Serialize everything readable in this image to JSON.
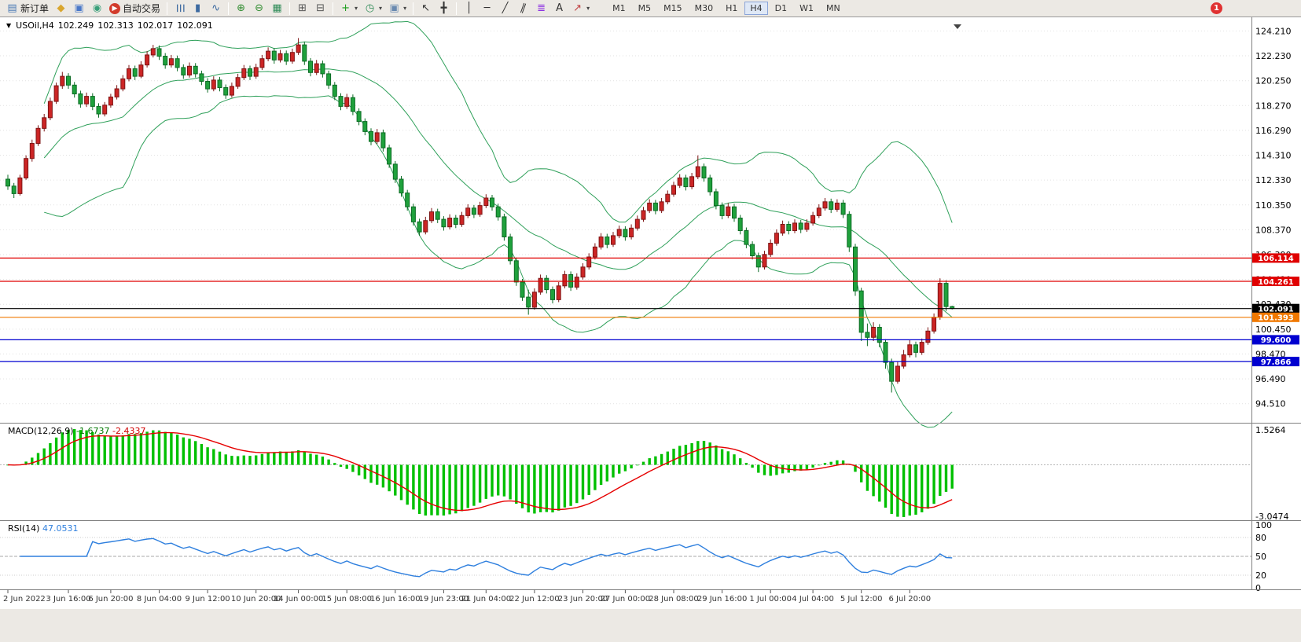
{
  "toolbar": {
    "caret_glyph": "▾",
    "notification_badge": "1",
    "timeframes": [
      "M1",
      "M5",
      "M15",
      "M30",
      "H1",
      "H4",
      "D1",
      "W1",
      "MN"
    ],
    "active_timeframe": "H4",
    "items": [
      {
        "t": "btn",
        "name": "new-order-button",
        "glyph": "▤",
        "gc": "#4a7ab5",
        "label": "新订单"
      },
      {
        "t": "btn",
        "name": "market-watch-button",
        "glyph": "◆",
        "gc": "#D9A62E"
      },
      {
        "t": "btn",
        "name": "charts-window-button",
        "glyph": "▣",
        "gc": "#4a78c8"
      },
      {
        "t": "btn",
        "name": "navigator-button",
        "glyph": "◉",
        "gc": "#3aa07a"
      },
      {
        "t": "btn",
        "name": "autotrading-button",
        "glyph": "▶",
        "gc": "#ffffff",
        "gbg": "#d23b2b",
        "label": "自动交易"
      },
      {
        "t": "sep"
      },
      {
        "t": "btn",
        "name": "bar-chart-mode-button",
        "glyph": "☰",
        "gc": "#3c6aa0",
        "rot": 90
      },
      {
        "t": "btn",
        "name": "candlestick-mode-button",
        "glyph": "▮",
        "gc": "#3c6aa0"
      },
      {
        "t": "btn",
        "name": "line-chart-mode-button",
        "glyph": "∿",
        "gc": "#3c6aa0"
      },
      {
        "t": "sep"
      },
      {
        "t": "btn",
        "name": "zoom-in-button",
        "glyph": "⊕",
        "gc": "#2e8b2e"
      },
      {
        "t": "btn",
        "name": "zoom-out-button",
        "glyph": "⊖",
        "gc": "#2e8b2e"
      },
      {
        "t": "btn",
        "name": "grid-button",
        "glyph": "▦",
        "gc": "#2e8b57"
      },
      {
        "t": "sep"
      },
      {
        "t": "btn",
        "name": "tile-windows-button",
        "glyph": "⊞",
        "gc": "#555555"
      },
      {
        "t": "btn",
        "name": "cascade-windows-button",
        "glyph": "⊟",
        "gc": "#555555"
      },
      {
        "t": "sep"
      },
      {
        "t": "btn",
        "name": "add-indicator-button",
        "glyph": "+",
        "gc": "#1d9e1d",
        "caret": true
      },
      {
        "t": "btn",
        "name": "period-button",
        "glyph": "◷",
        "gc": "#2e8b57",
        "caret": true
      },
      {
        "t": "btn",
        "name": "template-button",
        "glyph": "▣",
        "gc": "#6a8ab0",
        "caret": true
      },
      {
        "t": "sep"
      },
      {
        "t": "btn",
        "name": "cursor-button",
        "glyph": "↖",
        "gc": "#333333"
      },
      {
        "t": "btn",
        "name": "crosshair-button",
        "glyph": "╋",
        "gc": "#333333"
      },
      {
        "t": "sep"
      },
      {
        "t": "btn",
        "name": "vertical-line-button",
        "glyph": "│",
        "gc": "#333333"
      },
      {
        "t": "btn",
        "name": "horizontal-line-button",
        "glyph": "─",
        "gc": "#333333"
      },
      {
        "t": "btn",
        "name": "trendline-button",
        "glyph": "╱",
        "gc": "#333333"
      },
      {
        "t": "btn",
        "name": "channel-button",
        "glyph": "∥",
        "gc": "#333333",
        "rot": 20
      },
      {
        "t": "btn",
        "name": "fibonacci-button",
        "glyph": "≣",
        "gc": "#8a2be2"
      },
      {
        "t": "btn",
        "name": "text-label-button",
        "glyph": "A",
        "gc": "#333333"
      },
      {
        "t": "btn",
        "name": "arrows-button",
        "glyph": "↗",
        "gc": "#c04040",
        "caret": true
      }
    ]
  },
  "chart": {
    "menu_arrow_glyph": "▼"
  },
  "chart_data": {
    "type": "candlestick",
    "title": "USOil,H4",
    "timeframe": "H4",
    "ohlc_current": {
      "open": "102.249",
      "high": "102.313",
      "low": "102.017",
      "close": "102.091"
    },
    "colors": {
      "bull": "#CC2525",
      "bull_border": "#7E1515",
      "bear": "#1FA13C",
      "bear_border": "#0C6B24",
      "bollinger": "#2FA05A",
      "macd_histogram": "#00C000",
      "macd_signal": "#E60000",
      "rsi_line": "#2E7FDE"
    },
    "price_axis": {
      "ylim": [
        93.0,
        124.8
      ],
      "ticks": [
        "124.210",
        "122.230",
        "120.250",
        "118.270",
        "116.290",
        "114.310",
        "112.330",
        "110.350",
        "108.370",
        "106.390",
        "104.410",
        "102.430",
        "100.450",
        "98.470",
        "96.490",
        "94.510"
      ]
    },
    "hlines": [
      {
        "price": 106.114,
        "label": "106.114",
        "color": "#E00000"
      },
      {
        "price": 104.261,
        "label": "104.261",
        "color": "#E00000"
      },
      {
        "price": 102.091,
        "label": "102.091",
        "color": "#000000"
      },
      {
        "price": 101.393,
        "label": "101.393",
        "color": "#F07800"
      },
      {
        "price": 99.6,
        "label": "99.600",
        "color": "#0000D0"
      },
      {
        "price": 97.866,
        "label": "97.866",
        "color": "#0000D0"
      }
    ],
    "overlays": {
      "bollinger": {
        "period": 20,
        "deviation": 2
      }
    },
    "indicators": [
      {
        "type": "macd",
        "label": "MACD(12,26,9)",
        "params": [
          12,
          26,
          9
        ],
        "value_main": "-1.6737",
        "value_signal": "-2.4337",
        "axis_labels": [
          "1.5264",
          "-3.0474"
        ]
      },
      {
        "type": "rsi",
        "label": "RSI(14)",
        "value": "47.0531",
        "levels": [
          100,
          80,
          50,
          20,
          0
        ]
      }
    ],
    "time_axis": {
      "labels": [
        {
          "text": "2 Jun 2022",
          "bar": 0
        },
        {
          "text": "3 Jun 16:00",
          "bar": 10
        },
        {
          "text": "6 Jun 20:00",
          "bar": 17
        },
        {
          "text": "8 Jun 04:00",
          "bar": 25
        },
        {
          "text": "9 Jun 12:00",
          "bar": 33
        },
        {
          "text": "10 Jun 20:00",
          "bar": 41
        },
        {
          "text": "14 Jun 00:00",
          "bar": 48
        },
        {
          "text": "15 Jun 08:00",
          "bar": 56
        },
        {
          "text": "16 Jun 16:00",
          "bar": 64
        },
        {
          "text": "19 Jun 23:00",
          "bar": 72
        },
        {
          "text": "21 Jun 04:00",
          "bar": 79
        },
        {
          "text": "22 Jun 12:00",
          "bar": 87
        },
        {
          "text": "23 Jun 20:00",
          "bar": 95
        },
        {
          "text": "27 Jun 00:00",
          "bar": 102
        },
        {
          "text": "28 Jun 08:00",
          "bar": 110
        },
        {
          "text": "29 Jun 16:00",
          "bar": 118
        },
        {
          "text": "1 Jul 00:00",
          "bar": 126
        },
        {
          "text": "4 Jul 04:00",
          "bar": 133
        },
        {
          "text": "5 Jul 12:00",
          "bar": 141
        },
        {
          "text": "6 Jul 20:00",
          "bar": 149
        }
      ]
    },
    "candles": [
      [
        112.4,
        112.75,
        111.55,
        111.85
      ],
      [
        111.85,
        112.1,
        110.9,
        111.25
      ],
      [
        111.25,
        112.75,
        111.1,
        112.5
      ],
      [
        112.5,
        114.3,
        112.35,
        114.05
      ],
      [
        114.05,
        115.55,
        113.8,
        115.25
      ],
      [
        115.25,
        116.7,
        115.05,
        116.45
      ],
      [
        116.45,
        117.6,
        116.2,
        117.3
      ],
      [
        117.3,
        118.9,
        117.1,
        118.6
      ],
      [
        118.6,
        120.1,
        118.4,
        119.85
      ],
      [
        119.85,
        120.95,
        119.6,
        120.6
      ],
      [
        120.6,
        120.85,
        119.6,
        119.9
      ],
      [
        119.9,
        120.15,
        118.9,
        119.2
      ],
      [
        119.2,
        119.45,
        118.1,
        118.4
      ],
      [
        118.4,
        119.3,
        118.15,
        119.0
      ],
      [
        119.0,
        119.25,
        117.9,
        118.2
      ],
      [
        118.2,
        118.45,
        117.3,
        117.6
      ],
      [
        117.6,
        118.55,
        117.4,
        118.3
      ],
      [
        118.3,
        119.2,
        118.1,
        118.95
      ],
      [
        118.95,
        119.9,
        118.75,
        119.6
      ],
      [
        119.6,
        120.7,
        119.4,
        120.4
      ],
      [
        120.4,
        121.5,
        120.2,
        121.2
      ],
      [
        121.2,
        121.45,
        120.3,
        120.6
      ],
      [
        120.6,
        121.8,
        120.45,
        121.5
      ],
      [
        121.5,
        122.6,
        121.3,
        122.3
      ],
      [
        122.3,
        123.1,
        122.1,
        122.8
      ],
      [
        122.8,
        123.05,
        121.9,
        122.2
      ],
      [
        122.2,
        122.45,
        121.2,
        121.5
      ],
      [
        121.5,
        122.3,
        121.3,
        122.0
      ],
      [
        122.0,
        122.25,
        121.0,
        121.3
      ],
      [
        121.3,
        121.55,
        120.4,
        120.7
      ],
      [
        120.7,
        121.7,
        120.5,
        121.4
      ],
      [
        121.4,
        121.65,
        120.5,
        120.8
      ],
      [
        120.8,
        121.05,
        119.9,
        120.2
      ],
      [
        120.2,
        120.45,
        119.3,
        119.6
      ],
      [
        119.6,
        120.6,
        119.4,
        120.3
      ],
      [
        120.3,
        120.55,
        119.4,
        119.7
      ],
      [
        119.7,
        119.95,
        118.8,
        119.1
      ],
      [
        119.1,
        120.1,
        118.9,
        119.8
      ],
      [
        119.8,
        120.8,
        119.6,
        120.5
      ],
      [
        120.5,
        121.5,
        120.3,
        121.2
      ],
      [
        121.2,
        121.45,
        120.3,
        120.6
      ],
      [
        120.6,
        121.6,
        120.4,
        121.3
      ],
      [
        121.3,
        122.3,
        121.1,
        122.0
      ],
      [
        122.0,
        122.9,
        121.8,
        122.6
      ],
      [
        122.6,
        122.85,
        121.6,
        121.9
      ],
      [
        121.9,
        122.7,
        121.7,
        122.4
      ],
      [
        122.4,
        122.65,
        121.5,
        121.8
      ],
      [
        121.8,
        122.8,
        121.6,
        122.5
      ],
      [
        122.5,
        123.65,
        122.3,
        123.1
      ],
      [
        123.1,
        123.35,
        121.5,
        121.8
      ],
      [
        121.8,
        122.05,
        120.6,
        120.9
      ],
      [
        120.9,
        121.9,
        120.7,
        121.6
      ],
      [
        121.6,
        121.85,
        120.5,
        120.8
      ],
      [
        120.8,
        121.05,
        119.6,
        119.9
      ],
      [
        119.9,
        120.15,
        118.7,
        119.0
      ],
      [
        119.0,
        119.25,
        117.9,
        118.2
      ],
      [
        118.2,
        119.2,
        118.0,
        118.9
      ],
      [
        118.9,
        119.15,
        117.5,
        117.8
      ],
      [
        117.8,
        118.05,
        116.7,
        117.0
      ],
      [
        117.0,
        117.25,
        115.9,
        116.2
      ],
      [
        116.2,
        116.45,
        115.1,
        115.4
      ],
      [
        115.4,
        116.4,
        115.2,
        116.1
      ],
      [
        116.1,
        116.35,
        114.6,
        114.9
      ],
      [
        114.9,
        115.15,
        113.3,
        113.6
      ],
      [
        113.6,
        113.85,
        112.1,
        112.4
      ],
      [
        112.4,
        112.65,
        111.0,
        111.3
      ],
      [
        111.3,
        111.55,
        109.9,
        110.2
      ],
      [
        110.2,
        110.45,
        108.7,
        109.0
      ],
      [
        109.0,
        109.25,
        107.9,
        108.2
      ],
      [
        108.2,
        109.4,
        108.0,
        109.1
      ],
      [
        109.1,
        110.1,
        108.9,
        109.8
      ],
      [
        109.8,
        110.05,
        108.9,
        109.2
      ],
      [
        109.2,
        109.45,
        108.3,
        108.6
      ],
      [
        108.6,
        109.6,
        108.4,
        109.3
      ],
      [
        109.3,
        109.55,
        108.5,
        108.8
      ],
      [
        108.8,
        109.8,
        108.6,
        109.5
      ],
      [
        109.5,
        110.4,
        109.3,
        110.1
      ],
      [
        110.1,
        110.35,
        109.3,
        109.6
      ],
      [
        109.6,
        110.6,
        109.4,
        110.3
      ],
      [
        110.3,
        111.2,
        110.1,
        110.9
      ],
      [
        110.9,
        111.15,
        109.9,
        110.2
      ],
      [
        110.2,
        110.45,
        109.1,
        109.4
      ],
      [
        109.4,
        109.65,
        107.5,
        107.8
      ],
      [
        107.8,
        108.05,
        105.6,
        105.9
      ],
      [
        105.9,
        106.15,
        103.9,
        104.2
      ],
      [
        104.2,
        104.45,
        102.7,
        103.0
      ],
      [
        103.0,
        103.6,
        101.6,
        102.2
      ],
      [
        102.2,
        103.7,
        102.0,
        103.4
      ],
      [
        103.4,
        104.8,
        103.2,
        104.5
      ],
      [
        104.5,
        104.75,
        103.3,
        103.6
      ],
      [
        103.6,
        103.85,
        102.5,
        102.8
      ],
      [
        102.8,
        104.2,
        102.6,
        103.9
      ],
      [
        103.9,
        105.1,
        103.7,
        104.8
      ],
      [
        104.8,
        105.05,
        103.5,
        103.8
      ],
      [
        103.8,
        104.9,
        103.6,
        104.6
      ],
      [
        104.6,
        105.7,
        104.4,
        105.4
      ],
      [
        105.4,
        106.5,
        105.2,
        106.2
      ],
      [
        106.2,
        107.3,
        106.0,
        107.0
      ],
      [
        107.0,
        108.1,
        106.8,
        107.8
      ],
      [
        107.8,
        108.05,
        106.9,
        107.2
      ],
      [
        107.2,
        108.2,
        107.0,
        107.9
      ],
      [
        107.9,
        108.7,
        107.7,
        108.4
      ],
      [
        108.4,
        108.65,
        107.5,
        107.8
      ],
      [
        107.8,
        108.8,
        107.6,
        108.5
      ],
      [
        108.5,
        109.5,
        108.3,
        109.2
      ],
      [
        109.2,
        110.2,
        109.0,
        109.9
      ],
      [
        109.9,
        110.8,
        109.7,
        110.5
      ],
      [
        110.5,
        110.75,
        109.6,
        109.9
      ],
      [
        109.9,
        110.9,
        109.7,
        110.6
      ],
      [
        110.6,
        111.5,
        110.4,
        111.2
      ],
      [
        111.2,
        112.2,
        111.0,
        111.9
      ],
      [
        111.9,
        112.8,
        111.7,
        112.5
      ],
      [
        112.5,
        112.75,
        111.5,
        111.8
      ],
      [
        111.8,
        112.9,
        111.6,
        112.6
      ],
      [
        112.6,
        114.3,
        112.4,
        113.4
      ],
      [
        113.4,
        113.65,
        112.2,
        112.5
      ],
      [
        112.5,
        112.75,
        111.1,
        111.4
      ],
      [
        111.4,
        111.65,
        110.0,
        110.3
      ],
      [
        110.3,
        110.55,
        109.2,
        109.5
      ],
      [
        109.5,
        110.5,
        109.3,
        110.2
      ],
      [
        110.2,
        110.45,
        109.0,
        109.3
      ],
      [
        109.3,
        109.55,
        108.0,
        108.3
      ],
      [
        108.3,
        108.55,
        106.9,
        107.2
      ],
      [
        107.2,
        107.45,
        106.0,
        106.3
      ],
      [
        106.3,
        106.55,
        105.0,
        105.4
      ],
      [
        105.4,
        106.7,
        105.2,
        106.4
      ],
      [
        106.4,
        107.6,
        106.2,
        107.3
      ],
      [
        107.3,
        108.4,
        107.1,
        108.1
      ],
      [
        108.1,
        109.1,
        107.9,
        108.8
      ],
      [
        108.8,
        109.05,
        108.0,
        108.3
      ],
      [
        108.3,
        109.2,
        108.1,
        108.9
      ],
      [
        108.9,
        109.15,
        108.1,
        108.4
      ],
      [
        108.4,
        109.2,
        108.2,
        108.9
      ],
      [
        108.9,
        109.8,
        108.7,
        109.5
      ],
      [
        109.5,
        110.4,
        109.3,
        110.1
      ],
      [
        110.1,
        110.9,
        109.9,
        110.6
      ],
      [
        110.6,
        110.85,
        109.7,
        110.0
      ],
      [
        110.0,
        110.8,
        109.8,
        110.5
      ],
      [
        110.5,
        110.75,
        109.3,
        109.6
      ],
      [
        109.6,
        109.85,
        106.6,
        107.0
      ],
      [
        107.0,
        107.25,
        103.1,
        103.5
      ],
      [
        103.5,
        103.75,
        99.5,
        100.2
      ],
      [
        100.2,
        100.9,
        99.1,
        99.8
      ],
      [
        99.8,
        101.0,
        99.5,
        100.6
      ],
      [
        100.6,
        100.85,
        99.0,
        99.4
      ],
      [
        99.4,
        99.65,
        97.3,
        97.8
      ],
      [
        97.8,
        98.1,
        95.4,
        96.3
      ],
      [
        96.3,
        97.9,
        96.1,
        97.5
      ],
      [
        97.5,
        98.8,
        97.3,
        98.4
      ],
      [
        98.4,
        99.6,
        98.2,
        99.2
      ],
      [
        99.2,
        99.45,
        98.2,
        98.6
      ],
      [
        98.6,
        99.7,
        98.4,
        99.4
      ],
      [
        99.4,
        100.6,
        99.2,
        100.3
      ],
      [
        100.3,
        101.7,
        100.1,
        101.4
      ],
      [
        101.4,
        104.5,
        101.2,
        104.1
      ],
      [
        104.1,
        104.35,
        101.9,
        102.25
      ],
      [
        102.249,
        102.313,
        102.017,
        102.091
      ]
    ]
  }
}
